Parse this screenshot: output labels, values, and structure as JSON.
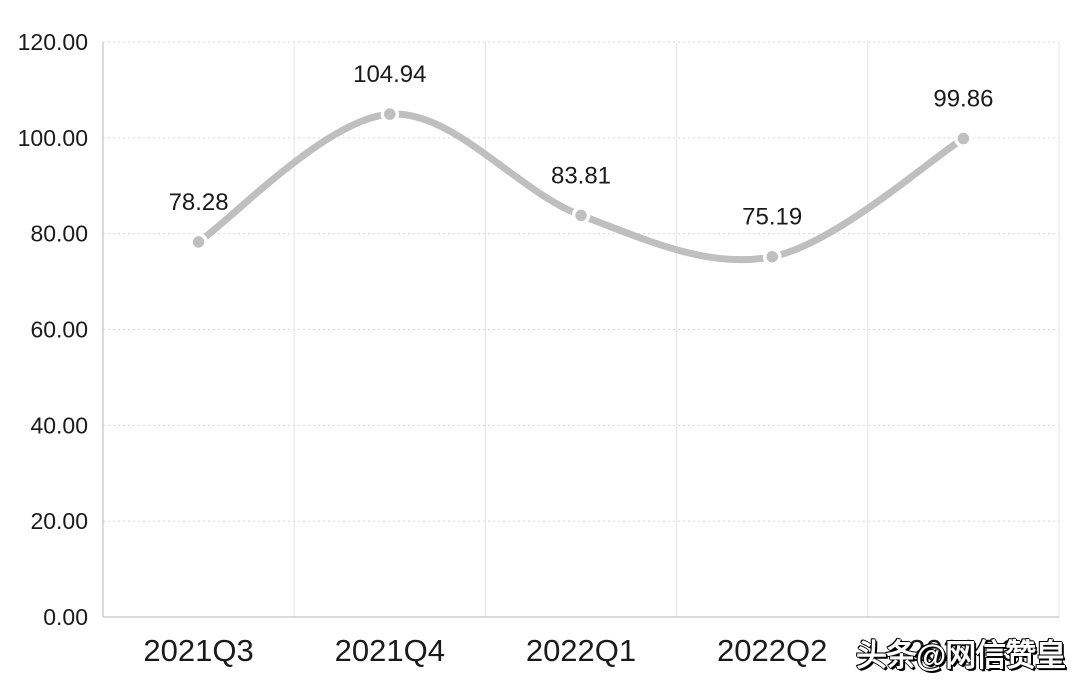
{
  "chart_data": {
    "type": "line",
    "title": "",
    "categories": [
      "2021Q3",
      "2021Q4",
      "2022Q1",
      "2022Q2",
      "2022Q3"
    ],
    "series": [
      {
        "name": "",
        "values": [
          78.28,
          104.94,
          83.81,
          75.19,
          99.86
        ]
      }
    ],
    "data_labels": [
      "78.28",
      "104.94",
      "83.81",
      "75.19",
      "99.86"
    ],
    "y_axis": {
      "min": 0,
      "max": 120,
      "tick_interval": 20,
      "tick_labels": [
        "0.00",
        "20.00",
        "40.00",
        "60.00",
        "80.00",
        "100.00",
        "120.00"
      ]
    },
    "x_axis": {
      "label": ""
    },
    "legend": "none",
    "grid": {
      "horizontal": "dotted",
      "vertical": "solid"
    },
    "style": {
      "line_color": "#bfbfbf",
      "marker_color": "#bfbfbf",
      "marker_halo": "#ffffff",
      "text_color": "#1a1a1a",
      "h_gridline_color": "#d7d7d7",
      "v_gridline_color": "#e4e4e4",
      "axis_line_color": "#c3c3c3",
      "background": "#ffffff",
      "line_smooth": true
    }
  },
  "watermark": {
    "text": "头条@网信赞皇"
  }
}
